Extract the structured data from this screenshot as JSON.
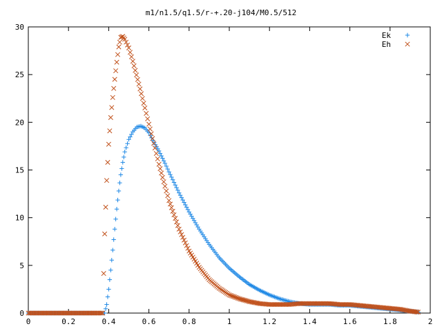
{
  "chart_data": {
    "type": "scatter",
    "title": "m1/n1.5/q1.5/r-+.20-j104/M0.5/512",
    "xlabel": "",
    "ylabel": "",
    "xlim": [
      0,
      2
    ],
    "ylim": [
      0,
      30
    ],
    "x_ticks": [
      "0",
      "0.2",
      "0.4",
      "0.6",
      "0.8",
      "1",
      "1.2",
      "1.4",
      "1.6",
      "1.8",
      "2"
    ],
    "y_ticks": [
      "0",
      "5",
      "10",
      "15",
      "20",
      "25",
      "30"
    ],
    "grid": false,
    "legend_position": "top-right",
    "series": [
      {
        "name": "Ek",
        "marker": "plus",
        "color": "#1e88e5",
        "points": [
          [
            0.0,
            0
          ],
          [
            0.1,
            0
          ],
          [
            0.2,
            0
          ],
          [
            0.3,
            0
          ],
          [
            0.38,
            0
          ],
          [
            0.39,
            0.9
          ],
          [
            0.4,
            2.5
          ],
          [
            0.41,
            4.5
          ],
          [
            0.42,
            6.6
          ],
          [
            0.43,
            8.8
          ],
          [
            0.44,
            10.9
          ],
          [
            0.45,
            12.8
          ],
          [
            0.46,
            14.5
          ],
          [
            0.47,
            15.8
          ],
          [
            0.48,
            16.9
          ],
          [
            0.5,
            18.2
          ],
          [
            0.52,
            19.0
          ],
          [
            0.54,
            19.5
          ],
          [
            0.56,
            19.6
          ],
          [
            0.58,
            19.4
          ],
          [
            0.6,
            18.9
          ],
          [
            0.62,
            18.1
          ],
          [
            0.65,
            17.0
          ],
          [
            0.68,
            15.7
          ],
          [
            0.7,
            14.8
          ],
          [
            0.75,
            12.6
          ],
          [
            0.8,
            10.6
          ],
          [
            0.85,
            8.8
          ],
          [
            0.9,
            7.2
          ],
          [
            0.95,
            5.8
          ],
          [
            1.0,
            4.7
          ],
          [
            1.05,
            3.8
          ],
          [
            1.1,
            3.0
          ],
          [
            1.15,
            2.4
          ],
          [
            1.2,
            1.9
          ],
          [
            1.25,
            1.5
          ],
          [
            1.3,
            1.2
          ],
          [
            1.35,
            1.0
          ],
          [
            1.4,
            0.9
          ],
          [
            1.45,
            0.9
          ],
          [
            1.5,
            0.9
          ],
          [
            1.55,
            0.8
          ],
          [
            1.6,
            0.8
          ],
          [
            1.65,
            0.7
          ],
          [
            1.7,
            0.6
          ],
          [
            1.75,
            0.5
          ],
          [
            1.8,
            0.4
          ],
          [
            1.85,
            0.3
          ],
          [
            1.9,
            0.2
          ],
          [
            1.94,
            0.1
          ]
        ]
      },
      {
        "name": "Eh",
        "marker": "cross",
        "color": "#c0501a",
        "points": [
          [
            0.0,
            0
          ],
          [
            0.1,
            0
          ],
          [
            0.2,
            0
          ],
          [
            0.3,
            0
          ],
          [
            0.37,
            0
          ],
          [
            0.38,
            8.3
          ],
          [
            0.39,
            13.9
          ],
          [
            0.4,
            17.7
          ],
          [
            0.41,
            20.5
          ],
          [
            0.42,
            22.6
          ],
          [
            0.43,
            24.5
          ],
          [
            0.44,
            26.3
          ],
          [
            0.45,
            27.9
          ],
          [
            0.46,
            28.9
          ],
          [
            0.47,
            29.0
          ],
          [
            0.48,
            28.7
          ],
          [
            0.5,
            27.8
          ],
          [
            0.52,
            26.4
          ],
          [
            0.55,
            24.0
          ],
          [
            0.58,
            21.5
          ],
          [
            0.6,
            19.8
          ],
          [
            0.63,
            17.3
          ],
          [
            0.65,
            15.6
          ],
          [
            0.68,
            13.3
          ],
          [
            0.7,
            11.8
          ],
          [
            0.75,
            8.8
          ],
          [
            0.8,
            6.5
          ],
          [
            0.85,
            4.8
          ],
          [
            0.9,
            3.5
          ],
          [
            0.95,
            2.6
          ],
          [
            1.0,
            1.9
          ],
          [
            1.05,
            1.5
          ],
          [
            1.1,
            1.2
          ],
          [
            1.15,
            1.0
          ],
          [
            1.2,
            0.9
          ],
          [
            1.25,
            0.9
          ],
          [
            1.3,
            0.9
          ],
          [
            1.35,
            1.0
          ],
          [
            1.4,
            1.0
          ],
          [
            1.45,
            1.0
          ],
          [
            1.5,
            1.0
          ],
          [
            1.55,
            0.9
          ],
          [
            1.6,
            0.9
          ],
          [
            1.65,
            0.8
          ],
          [
            1.7,
            0.7
          ],
          [
            1.75,
            0.6
          ],
          [
            1.8,
            0.5
          ],
          [
            1.85,
            0.4
          ],
          [
            1.9,
            0.2
          ],
          [
            1.94,
            0.1
          ]
        ]
      }
    ]
  }
}
